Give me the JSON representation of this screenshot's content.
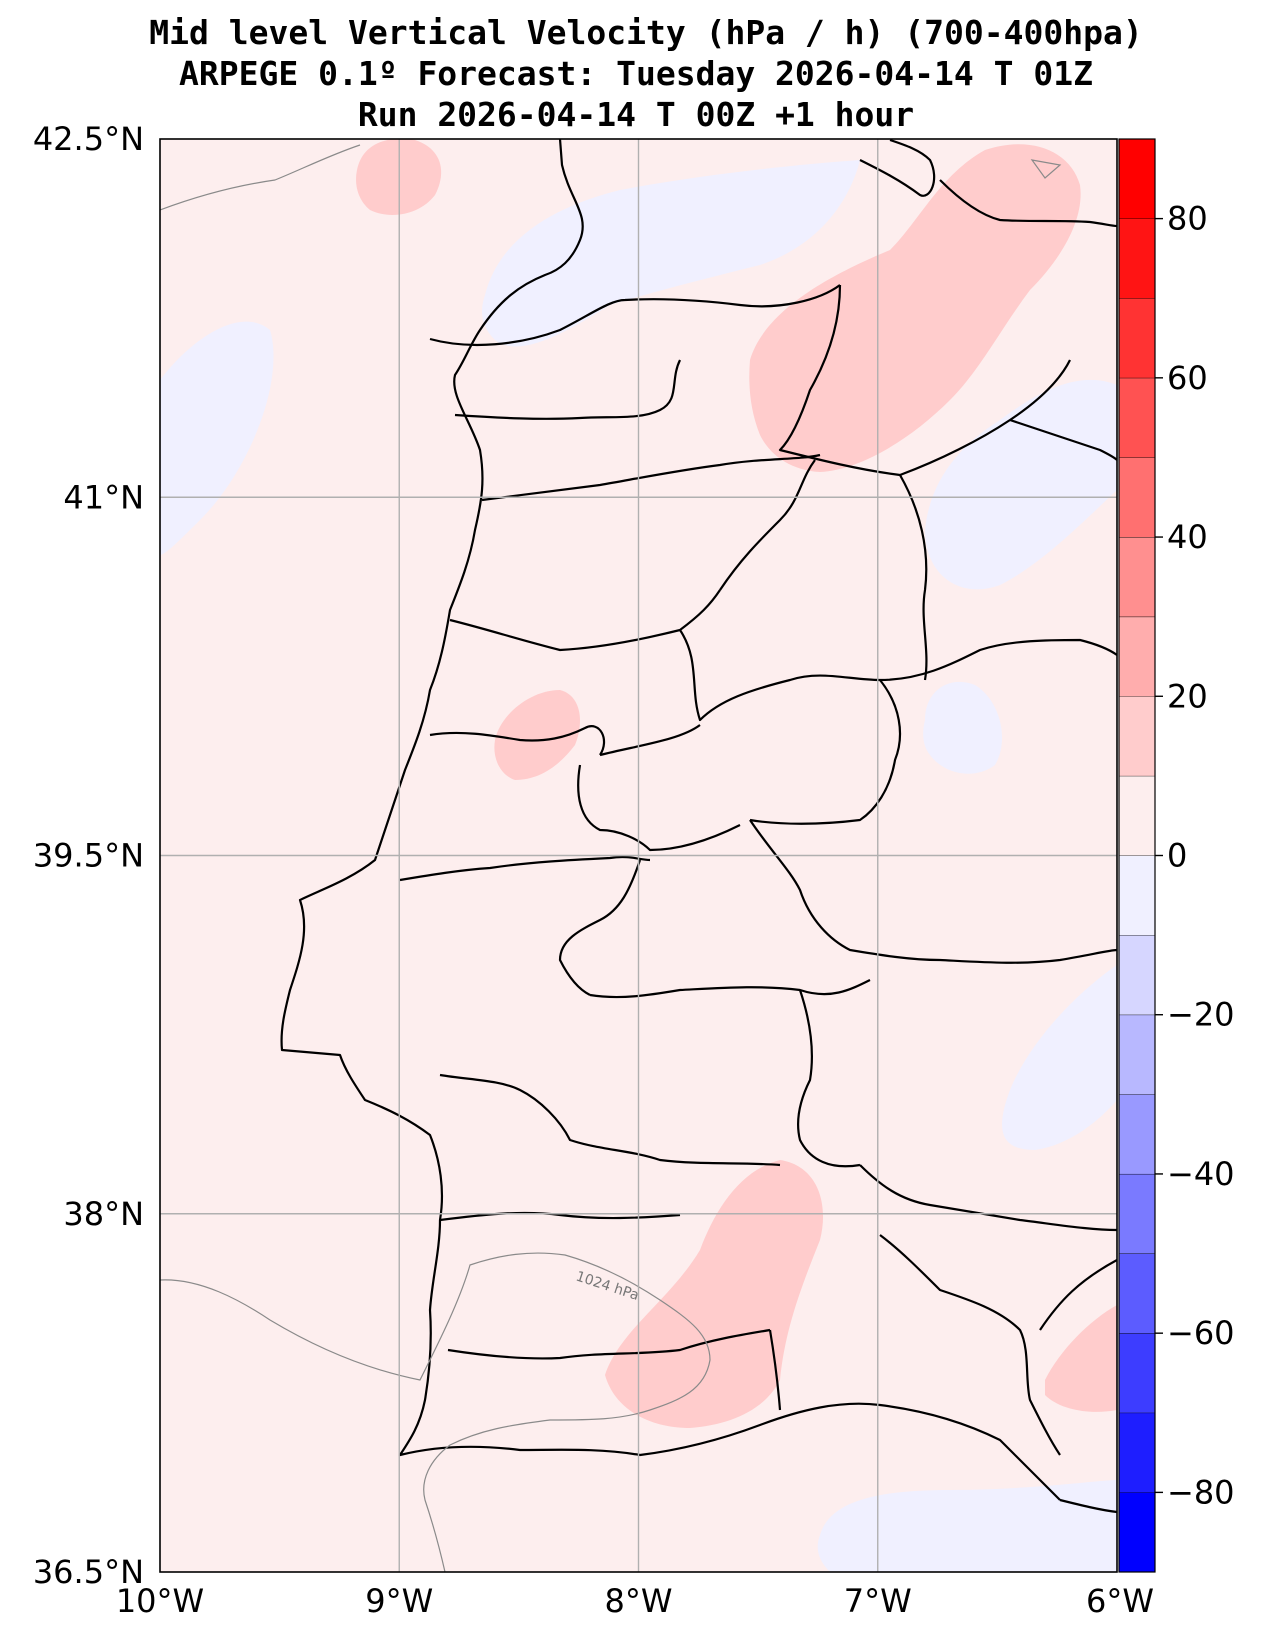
{
  "title": {
    "line1": "Mid level Vertical Velocity (hPa / h)  (700-400hpa)",
    "line2": "ARPEGE 0.1º Forecast: Tuesday 2026-04-14 T 01Z",
    "line3": "Run 2026-04-14 T 00Z +1 hour"
  },
  "map": {
    "lon_range": [
      -10,
      -6
    ],
    "lat_range": [
      36.5,
      42.5
    ],
    "background_color": "#fdeeee",
    "x_ticks": [
      {
        "lon": -10,
        "label": "10°W"
      },
      {
        "lon": -9,
        "label": "9°W"
      },
      {
        "lon": -8,
        "label": "8°W"
      },
      {
        "lon": -7,
        "label": "7°W"
      },
      {
        "lon": -6,
        "label": "6°W"
      }
    ],
    "y_ticks": [
      {
        "lat": 42.5,
        "label": "42.5°N"
      },
      {
        "lat": 41,
        "label": "41°N"
      },
      {
        "lat": 39.5,
        "label": "39.5°N"
      },
      {
        "lat": 38,
        "label": "38°N"
      },
      {
        "lat": 36.5,
        "label": "36.5°N"
      }
    ],
    "isobar_label": "1024 hPa"
  },
  "colorbar": {
    "range": [
      -90,
      90
    ],
    "bins": [
      {
        "from": -90,
        "to": -80,
        "color": "#0000ff"
      },
      {
        "from": -80,
        "to": -70,
        "color": "#1e1eff"
      },
      {
        "from": -70,
        "to": -60,
        "color": "#3d3dff"
      },
      {
        "from": -60,
        "to": -50,
        "color": "#5c5cff"
      },
      {
        "from": -50,
        "to": -40,
        "color": "#7a7aff"
      },
      {
        "from": -40,
        "to": -30,
        "color": "#9999ff"
      },
      {
        "from": -30,
        "to": -20,
        "color": "#b8b8ff"
      },
      {
        "from": -20,
        "to": -10,
        "color": "#d6d6ff"
      },
      {
        "from": -10,
        "to": 0,
        "color": "#f0f0ff"
      },
      {
        "from": 0,
        "to": 10,
        "color": "#fdeeee"
      },
      {
        "from": 10,
        "to": 20,
        "color": "#ffcccc"
      },
      {
        "from": 20,
        "to": 30,
        "color": "#ffadad"
      },
      {
        "from": 30,
        "to": 40,
        "color": "#ff8f8f"
      },
      {
        "from": 40,
        "to": 50,
        "color": "#ff7070"
      },
      {
        "from": 50,
        "to": 60,
        "color": "#ff5252"
      },
      {
        "from": 60,
        "to": 70,
        "color": "#ff3333"
      },
      {
        "from": 70,
        "to": 80,
        "color": "#ff1414"
      },
      {
        "from": 80,
        "to": 90,
        "color": "#ff0000"
      }
    ],
    "ticks": [
      {
        "value": 80,
        "label": "80"
      },
      {
        "value": 60,
        "label": "60"
      },
      {
        "value": 40,
        "label": "40"
      },
      {
        "value": 20,
        "label": "20"
      },
      {
        "value": 0,
        "label": "0"
      },
      {
        "value": -20,
        "label": "−20"
      },
      {
        "value": -40,
        "label": "−40"
      },
      {
        "value": -60,
        "label": "−60"
      },
      {
        "value": -80,
        "label": "−80"
      }
    ]
  },
  "legend_colors": {
    "positive_shade": "#ffcccc",
    "negative_shade": "#f0f0ff"
  }
}
